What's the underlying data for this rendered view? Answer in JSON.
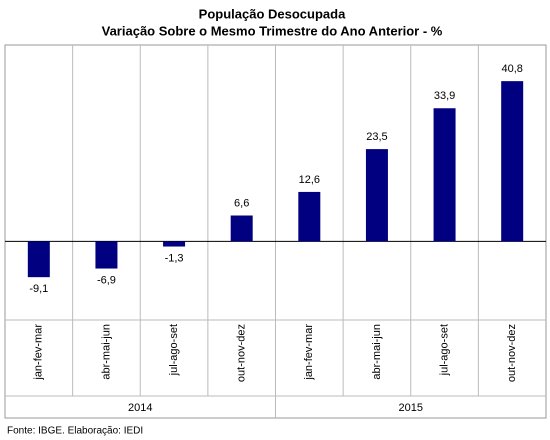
{
  "chart_data": {
    "type": "bar",
    "title": "População Desocupada",
    "subtitle": "Variação Sobre o Mesmo Trimestre do Ano Anterior - %",
    "categories": [
      "jan-fev-mar",
      "abr-mai-jun",
      "jul-ago-set",
      "out-nov-dez",
      "jan-fev-mar",
      "abr-mai-jun",
      "jul-ago-set",
      "out-nov-dez"
    ],
    "groups": [
      "2014",
      "2015"
    ],
    "values": [
      -9.1,
      -6.9,
      -1.3,
      6.6,
      12.6,
      23.5,
      33.9,
      40.8
    ],
    "value_labels": [
      "-9,1",
      "-6,9",
      "-1,3",
      "6,6",
      "12,6",
      "23,5",
      "33,9",
      "40,8"
    ],
    "color": "#000080",
    "ylim": [
      -20,
      50
    ],
    "source": "Fonte: IBGE. Elaboração: IEDI"
  }
}
